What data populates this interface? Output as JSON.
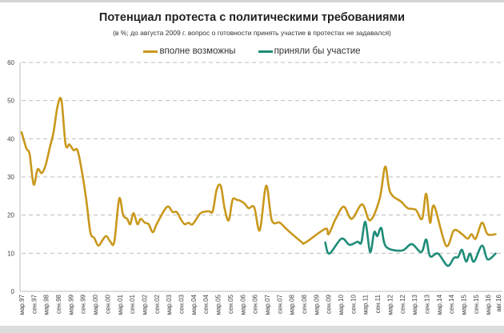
{
  "chart_data": {
    "type": "line",
    "title": "Потенциал протеста с политическими требованиями",
    "subtitle": "(в %; до августа 2009 г. вопрос о готовности принять участие в протестах не задавался)",
    "x_unit": "months since мар.97",
    "ylim": [
      0,
      60
    ],
    "yticks": [
      0,
      10,
      20,
      30,
      40,
      50,
      60
    ],
    "grid": true,
    "legend_placement": "top-center",
    "x_range": [
      0,
      233
    ],
    "xtick_labels": [
      "мар.97",
      "сен.97",
      "мар.98",
      "сен.98",
      "мар.99",
      "сен.99",
      "мар.00",
      "сен.00",
      "мар.01",
      "сен.01",
      "мар.02",
      "сен.02",
      "мар.03",
      "сен.03",
      "мар.04",
      "сен.04",
      "мар.05",
      "сен.05",
      "мар.06",
      "сен.06",
      "мар.07",
      "сен.07",
      "мар.08",
      "сен.08",
      "мар.09",
      "сен.09",
      "мар.10",
      "сен.10",
      "мар.11",
      "сен.11",
      "мар.12",
      "сен.12",
      "мар.13",
      "сен.13",
      "мар.14",
      "сен.14",
      "мар.15",
      "сен.15",
      "мар.16",
      "авг.16"
    ],
    "series": [
      {
        "name": "вполне возможны",
        "color": "#C9981C",
        "points": [
          [
            0,
            41.7
          ],
          [
            2.3,
            37.5
          ],
          [
            3.9,
            36
          ],
          [
            5.9,
            28
          ],
          [
            7.8,
            32
          ],
          [
            9.8,
            31
          ],
          [
            11.7,
            33
          ],
          [
            13.7,
            37.5
          ],
          [
            15.6,
            41.7
          ],
          [
            17.6,
            48.6
          ],
          [
            19.5,
            50
          ],
          [
            21.5,
            38.5
          ],
          [
            23.4,
            38.5
          ],
          [
            25.4,
            37
          ],
          [
            27.3,
            37
          ],
          [
            29.3,
            32
          ],
          [
            31.6,
            24
          ],
          [
            33.6,
            15.5
          ],
          [
            35.5,
            14
          ],
          [
            37.5,
            12
          ],
          [
            39.5,
            13.4
          ],
          [
            41.4,
            14.5
          ],
          [
            43.4,
            13
          ],
          [
            45.3,
            13
          ],
          [
            47.7,
            24.3
          ],
          [
            49.6,
            20
          ],
          [
            51.6,
            19
          ],
          [
            53.1,
            17.6
          ],
          [
            54.7,
            20.5
          ],
          [
            56.6,
            17.6
          ],
          [
            58.2,
            19
          ],
          [
            60.2,
            18
          ],
          [
            62.1,
            17.6
          ],
          [
            64.1,
            15.5
          ],
          [
            66,
            17.6
          ],
          [
            69.9,
            21.4
          ],
          [
            71.9,
            22.2
          ],
          [
            73.8,
            20.8
          ],
          [
            75.8,
            20.8
          ],
          [
            77.7,
            19
          ],
          [
            79.7,
            17.6
          ],
          [
            81.6,
            18
          ],
          [
            83.6,
            17.6
          ],
          [
            87.5,
            20.5
          ],
          [
            91.4,
            21
          ],
          [
            93.4,
            21
          ],
          [
            95.3,
            26.6
          ],
          [
            97.3,
            27.7
          ],
          [
            99.2,
            21.8
          ],
          [
            101.2,
            18.6
          ],
          [
            103.1,
            24
          ],
          [
            105.1,
            24
          ],
          [
            107,
            23.7
          ],
          [
            109,
            23
          ],
          [
            110.9,
            21.8
          ],
          [
            113.7,
            22
          ],
          [
            116.4,
            16
          ],
          [
            119.5,
            27.7
          ],
          [
            122.3,
            18.6
          ],
          [
            126.2,
            18
          ],
          [
            130.1,
            16
          ],
          [
            136.7,
            13
          ],
          [
            138.7,
            12.8
          ],
          [
            148.4,
            16.4
          ],
          [
            150,
            15
          ],
          [
            153.5,
            19
          ],
          [
            157.4,
            22.2
          ],
          [
            161.3,
            19
          ],
          [
            166.4,
            22.8
          ],
          [
            170.3,
            18.6
          ],
          [
            175,
            24.3
          ],
          [
            177.7,
            32.7
          ],
          [
            180.1,
            26
          ],
          [
            185.5,
            23.5
          ],
          [
            188.7,
            21.8
          ],
          [
            192.6,
            21.4
          ],
          [
            195.7,
            19
          ],
          [
            197.7,
            25.6
          ],
          [
            199.6,
            18
          ],
          [
            201.6,
            22.4
          ],
          [
            207.4,
            12
          ],
          [
            211.3,
            16
          ],
          [
            215.2,
            15
          ],
          [
            218,
            13.8
          ],
          [
            219.9,
            15
          ],
          [
            221.9,
            13.8
          ],
          [
            225,
            18
          ],
          [
            227.7,
            15
          ],
          [
            231.6,
            15
          ]
        ]
      },
      {
        "name": "приняли бы участие",
        "color": "#1E8C78",
        "points": [
          [
            148.4,
            12.8
          ],
          [
            150.4,
            9.9
          ],
          [
            156.3,
            13.8
          ],
          [
            160.2,
            12.2
          ],
          [
            164.1,
            13
          ],
          [
            166,
            12.8
          ],
          [
            168,
            18.2
          ],
          [
            170.3,
            10.3
          ],
          [
            172.3,
            15.5
          ],
          [
            173.8,
            14.5
          ],
          [
            175.8,
            16.6
          ],
          [
            178.1,
            11.7
          ],
          [
            185.9,
            10.7
          ],
          [
            190.6,
            12.4
          ],
          [
            195.3,
            10.3
          ],
          [
            197.7,
            13.6
          ],
          [
            199.6,
            9.2
          ],
          [
            203.5,
            9.9
          ],
          [
            208.2,
            6.7
          ],
          [
            211.3,
            8.8
          ],
          [
            213.3,
            9
          ],
          [
            215.2,
            10.9
          ],
          [
            217.2,
            7.8
          ],
          [
            219.1,
            9.9
          ],
          [
            221.1,
            7.8
          ],
          [
            225,
            12
          ],
          [
            227.7,
            8.4
          ],
          [
            231.6,
            9.9
          ]
        ]
      }
    ]
  }
}
